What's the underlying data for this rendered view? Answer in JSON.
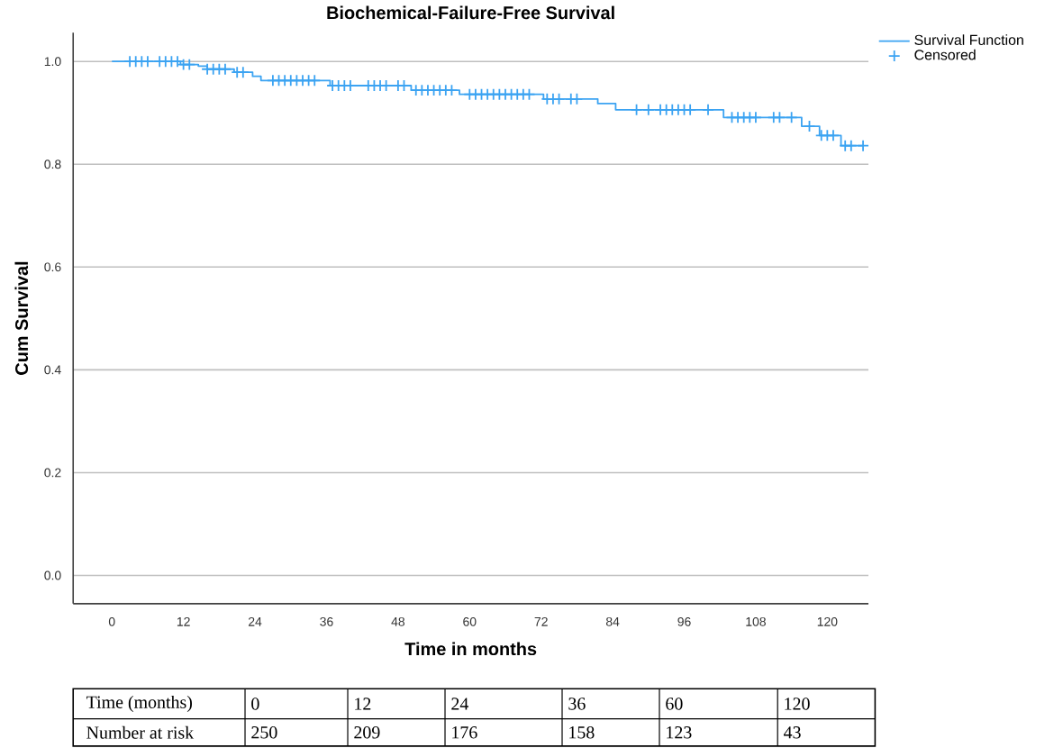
{
  "chart_data": {
    "type": "step",
    "title": "Biochemical-Failure-Free Survival",
    "xlabel": "Time in months",
    "ylabel": "Cum Survival",
    "xlim": [
      -6.5,
      126.9
    ],
    "ylim": [
      -0.055,
      1.056
    ],
    "xticks": [
      0,
      12,
      24,
      36,
      48,
      60,
      72,
      84,
      96,
      108,
      120
    ],
    "yticks": [
      {
        "value": 0,
        "label": "0.0"
      },
      {
        "value": 0.2,
        "label": "0.2"
      },
      {
        "value": 0.4,
        "label": "0.4"
      },
      {
        "value": 0.6,
        "label": "0.6"
      },
      {
        "value": 0.8,
        "label": "0.8"
      },
      {
        "value": 1,
        "label": "1.0"
      }
    ],
    "grid": "y",
    "legend": "top right",
    "series": [
      {
        "name": "Survival Function",
        "color": "#3ba3f2",
        "x": [
          0,
          11.5,
          14.5,
          16,
          20.5,
          23.6,
          25,
          36.6,
          50.2,
          58.3,
          72.4,
          81.5,
          84.5,
          102.6,
          115.7,
          118.7,
          122.3,
          126
        ],
        "values": [
          1.0,
          0.994,
          0.991,
          0.985,
          0.979,
          0.971,
          0.963,
          0.953,
          0.944,
          0.936,
          0.927,
          0.918,
          0.906,
          0.891,
          0.874,
          0.856,
          0.836,
          0.836
        ]
      },
      {
        "name": "Censored",
        "type": "scatter",
        "marker": "cross",
        "color": "#3ba3f2",
        "x": [
          3,
          4,
          5,
          6,
          8,
          9,
          10,
          11,
          12,
          13,
          16,
          17,
          18,
          19,
          21,
          22,
          27,
          28,
          29,
          30,
          31,
          32,
          33,
          34,
          37,
          38,
          39,
          40,
          43,
          44,
          45,
          46,
          48,
          49,
          51,
          52,
          53,
          54,
          55,
          56,
          57,
          60,
          61,
          62,
          63,
          64,
          65,
          66,
          67,
          68,
          69,
          70,
          73,
          74,
          75,
          77,
          78,
          88,
          90,
          92,
          93,
          94,
          95,
          96,
          97,
          100,
          104,
          105,
          106,
          107,
          108,
          111,
          112,
          114,
          117,
          119,
          120,
          121,
          123,
          124,
          126
        ],
        "values": [
          1.0,
          1.0,
          1.0,
          1.0,
          1.0,
          1.0,
          1.0,
          1.0,
          0.994,
          0.994,
          0.985,
          0.985,
          0.985,
          0.985,
          0.979,
          0.979,
          0.963,
          0.963,
          0.963,
          0.963,
          0.963,
          0.963,
          0.963,
          0.963,
          0.953,
          0.953,
          0.953,
          0.953,
          0.953,
          0.953,
          0.953,
          0.953,
          0.953,
          0.953,
          0.944,
          0.944,
          0.944,
          0.944,
          0.944,
          0.944,
          0.944,
          0.936,
          0.936,
          0.936,
          0.936,
          0.936,
          0.936,
          0.936,
          0.936,
          0.936,
          0.936,
          0.936,
          0.927,
          0.927,
          0.927,
          0.927,
          0.927,
          0.906,
          0.906,
          0.906,
          0.906,
          0.906,
          0.906,
          0.906,
          0.906,
          0.906,
          0.891,
          0.891,
          0.891,
          0.891,
          0.891,
          0.891,
          0.891,
          0.891,
          0.874,
          0.856,
          0.856,
          0.856,
          0.836,
          0.836,
          0.836
        ]
      }
    ],
    "annotations": [
      "Time (months)",
      "0",
      "12",
      "24",
      "36",
      "60",
      "120",
      "Number at risk",
      "250",
      "209",
      "176",
      "158",
      "123",
      "43"
    ]
  }
}
